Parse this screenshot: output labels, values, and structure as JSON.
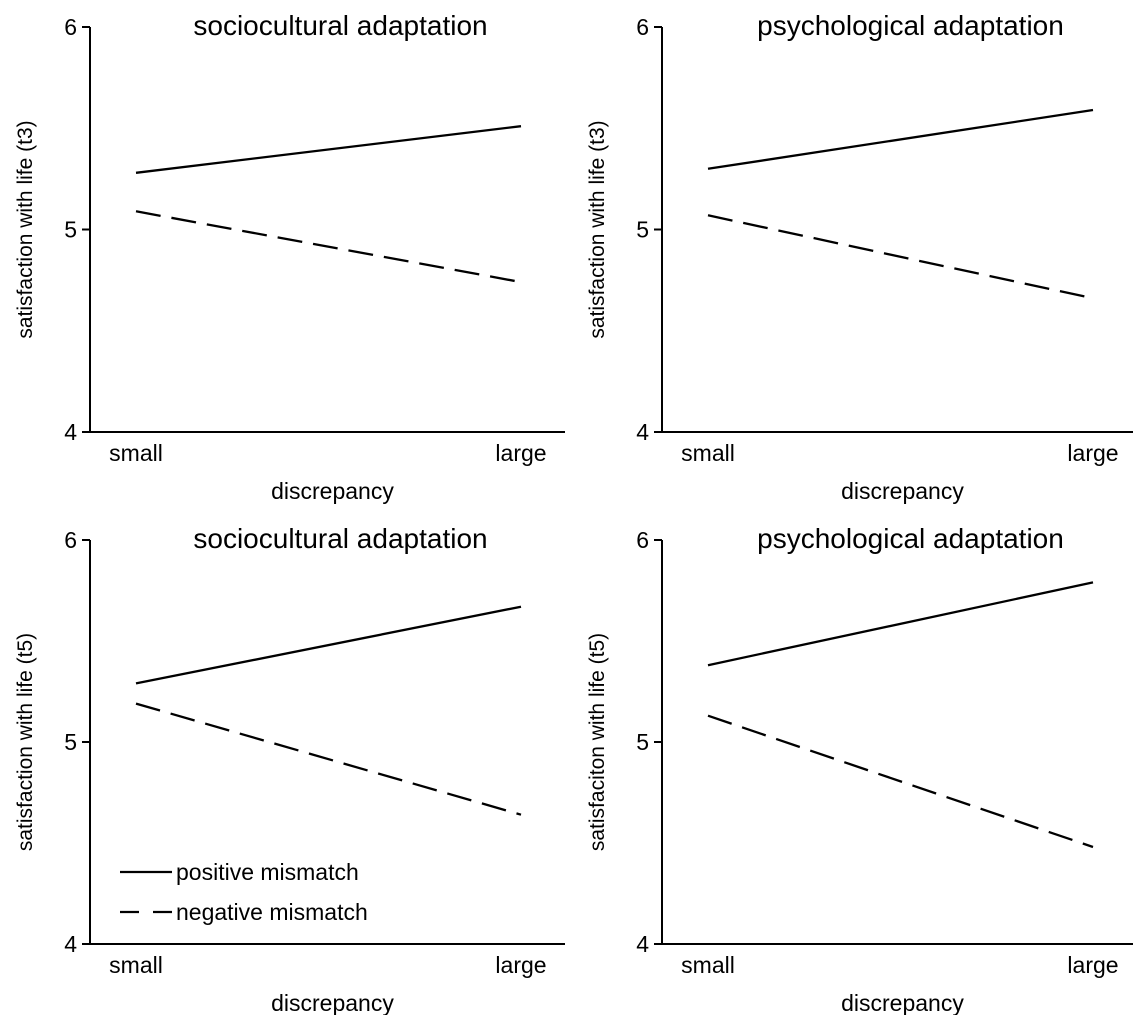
{
  "chart_data": [
    {
      "type": "line",
      "title": "sociocultural adaptation",
      "xlabel": "discrepancy",
      "ylabel": "satisfaction with life (t3)",
      "categories": [
        "small",
        "large"
      ],
      "ylim": [
        4,
        6
      ],
      "yticks": [
        "4",
        "5",
        "6"
      ],
      "series": [
        {
          "name": "positive mismatch",
          "style": "solid",
          "values": [
            5.28,
            5.51
          ]
        },
        {
          "name": "negative mismatch",
          "style": "dashed",
          "values": [
            5.09,
            4.74
          ]
        }
      ]
    },
    {
      "type": "line",
      "title": "psychological adaptation",
      "xlabel": "discrepancy",
      "ylabel": "satisfaction with life (t3)",
      "categories": [
        "small",
        "large"
      ],
      "ylim": [
        4,
        6
      ],
      "yticks": [
        "4",
        "5",
        "6"
      ],
      "series": [
        {
          "name": "positive mismatch",
          "style": "solid",
          "values": [
            5.3,
            5.59
          ]
        },
        {
          "name": "negative mismatch",
          "style": "dashed",
          "values": [
            5.07,
            4.66
          ]
        }
      ]
    },
    {
      "type": "line",
      "title": "sociocultural adaptation",
      "xlabel": "discrepancy",
      "ylabel": "satisfaction with life (t5)",
      "categories": [
        "small",
        "large"
      ],
      "ylim": [
        4,
        6
      ],
      "yticks": [
        "4",
        "5",
        "6"
      ],
      "legend": {
        "position": "bottom-left",
        "entries": [
          "positive mismatch",
          "negative mismatch"
        ]
      },
      "series": [
        {
          "name": "positive mismatch",
          "style": "solid",
          "values": [
            5.29,
            5.67
          ]
        },
        {
          "name": "negative mismatch",
          "style": "dashed",
          "values": [
            5.19,
            4.64
          ]
        }
      ]
    },
    {
      "type": "line",
      "title": "psychological adaptation",
      "xlabel": "discrepancy",
      "ylabel": "satisfaciton with life (t5)",
      "categories": [
        "small",
        "large"
      ],
      "ylim": [
        4,
        6
      ],
      "yticks": [
        "4",
        "5",
        "6"
      ],
      "series": [
        {
          "name": "positive mismatch",
          "style": "solid",
          "values": [
            5.38,
            5.79
          ]
        },
        {
          "name": "negative mismatch",
          "style": "dashed",
          "values": [
            5.13,
            4.48
          ]
        }
      ]
    }
  ]
}
